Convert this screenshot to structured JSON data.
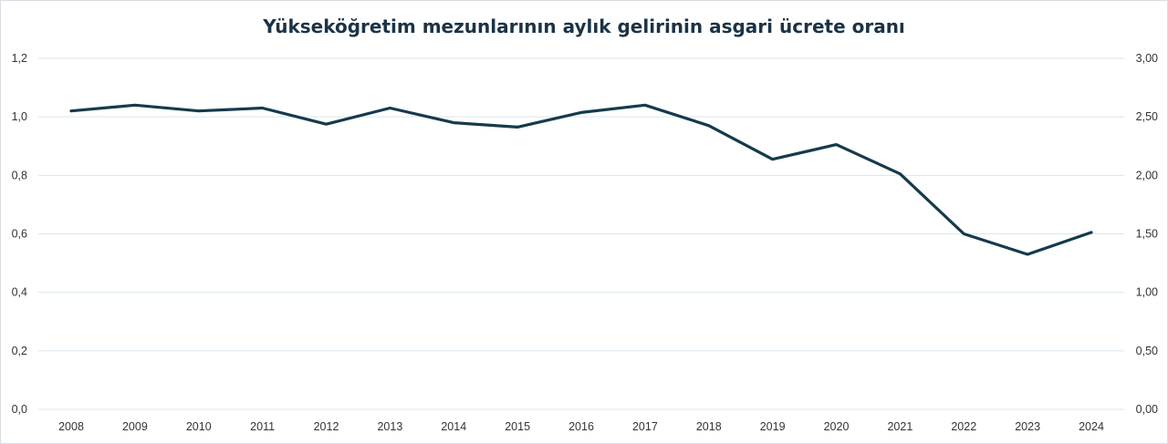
{
  "chart_data": {
    "type": "line",
    "title": "Yükseköğretim mezunlarının aylık gelirinin asgari ücrete oranı",
    "xlabel": "",
    "ylabel": "",
    "x": [
      "2008",
      "2009",
      "2010",
      "2011",
      "2012",
      "2013",
      "2014",
      "2015",
      "2016",
      "2017",
      "2018",
      "2019",
      "2020",
      "2021",
      "2022",
      "2023",
      "2024"
    ],
    "series": [
      {
        "values": [
          1.02,
          1.04,
          1.02,
          1.03,
          0.975,
          1.03,
          0.98,
          0.965,
          1.015,
          1.04,
          0.97,
          0.855,
          0.905,
          0.805,
          0.6,
          0.53,
          0.605
        ]
      }
    ],
    "ylim": [
      0,
      1.2
    ],
    "yticks": [
      "0,0",
      "0,2",
      "0,4",
      "0,6",
      "0,8",
      "1,0",
      "1,2"
    ],
    "ylim_right": [
      0,
      3
    ],
    "yticks_right": [
      "0,00",
      "0,50",
      "1,00",
      "1,50",
      "2,00",
      "2,50",
      "3,00"
    ],
    "grid": true,
    "legend": "none",
    "colors": {
      "line": "#163a4c",
      "grid": "#d8e6f0",
      "title": "#1b3346"
    }
  }
}
